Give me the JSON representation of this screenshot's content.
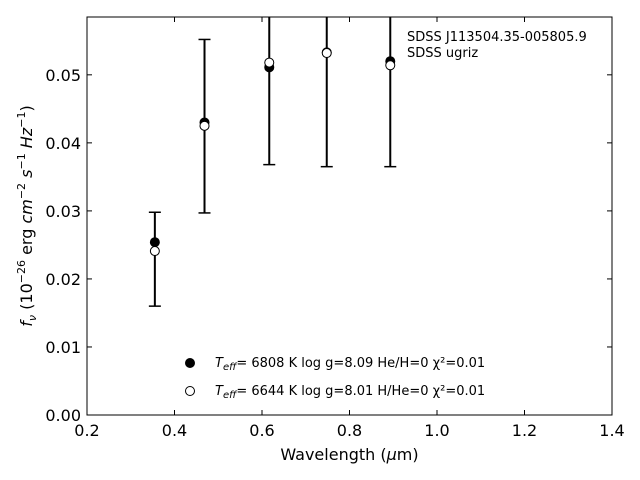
{
  "chart_data": {
    "type": "scatter",
    "xlabel": "Wavelength (μm)",
    "ylabel": "f_ν (10^-26 erg cm^-2 s^-1 Hz^-1)",
    "xlim": [
      0.2,
      1.4
    ],
    "ylim": [
      0.0,
      0.0585
    ],
    "xticks": [
      "0.2",
      "0.4",
      "0.6",
      "0.8",
      "1.0",
      "1.2",
      "1.4"
    ],
    "yticks": [
      "0.00",
      "0.01",
      "0.02",
      "0.03",
      "0.04",
      "0.05"
    ],
    "grid": false,
    "legend_position": "bottom-center",
    "annotations": [
      "SDSS J113504.35-005805.9",
      "SDSS ugriz"
    ],
    "observed": {
      "x": [
        0.3551,
        0.4686,
        0.6166,
        0.748,
        0.8932
      ],
      "y": [
        0.0246,
        0.0425,
        0.0518,
        0.0532,
        0.0514
      ],
      "yerr_low": [
        0.016,
        0.0297,
        0.0368,
        0.0365,
        0.0365
      ],
      "yerr_high": [
        0.0298,
        0.0552,
        0.068,
        0.07,
        0.068
      ]
    },
    "series": [
      {
        "marker": "filled",
        "model": "6808 K  log g=8.09  He/H=0  χ²=0.01",
        "x": [
          0.3551,
          0.4686,
          0.6166,
          0.748,
          0.8932
        ],
        "y": [
          0.0254,
          0.043,
          0.0511,
          0.0533,
          0.052
        ]
      },
      {
        "marker": "open",
        "model": "6644 K  log g=8.01  H/He=0  χ²=0.01",
        "x": [
          0.3551,
          0.4686,
          0.6166,
          0.748,
          0.8932
        ],
        "y": [
          0.0241,
          0.0425,
          0.0518,
          0.0532,
          0.0514
        ]
      }
    ]
  }
}
